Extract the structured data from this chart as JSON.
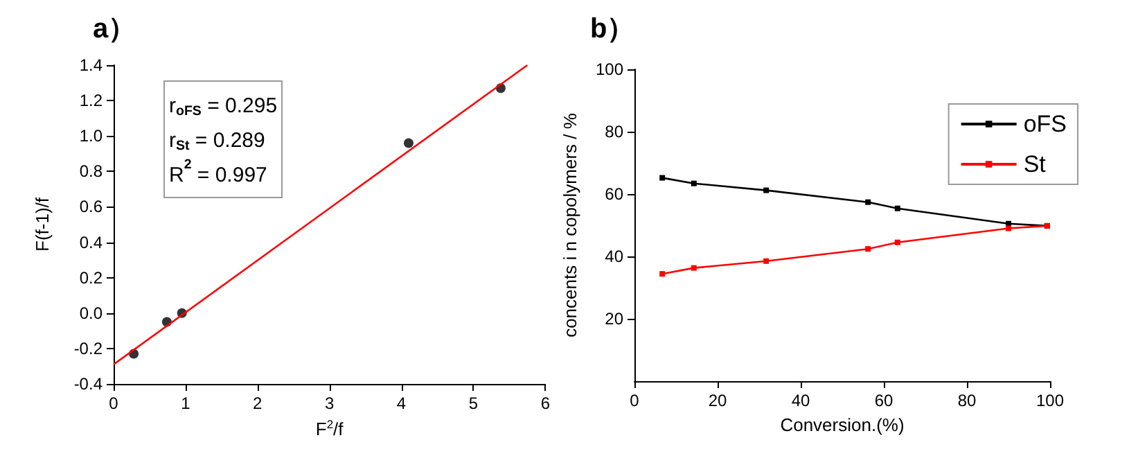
{
  "chart_data": [
    {
      "type": "scatter",
      "title": "a）",
      "xlabel": "F$^{2}$/f",
      "ylabel": "F(f-1)/f",
      "xlim": [
        0,
        6
      ],
      "xticks": [
        0,
        1,
        2,
        3,
        4,
        5,
        6
      ],
      "ylim": [
        -0.4,
        1.4
      ],
      "yticks": [
        {
          "value": -0.4,
          "label": "-0.4"
        },
        {
          "value": -0.2,
          "label": "-0.2"
        },
        {
          "value": 0,
          "label": "0.0"
        },
        {
          "value": 0.2,
          "label": "0.2"
        },
        {
          "value": 0.4,
          "label": "0.4"
        },
        {
          "value": 0.6,
          "label": "0.6"
        },
        {
          "value": 0.8,
          "label": "0.8"
        },
        {
          "value": 1,
          "label": "1.0"
        },
        {
          "value": 1.2,
          "label": "1.2"
        },
        {
          "value": 1.4,
          "label": "1.4"
        }
      ],
      "grid": false,
      "legend": false,
      "annotations": [
        "r$_{oFS}$ = 0.295",
        "r$_{St}$ = 0.289",
        "R$^{2}$ = 0.997"
      ],
      "series": [
        {
          "color": "#000000",
          "marker": "circle",
          "x": [
            0.28,
            0.74,
            0.95,
            4.1,
            5.38
          ],
          "values": [
            -0.23,
            -0.05,
            0.0,
            0.96,
            1.27
          ]
        },
        {
          "type": "line",
          "color": "#ff0000",
          "marker": "none",
          "x": [
            0,
            5.75
          ],
          "values": [
            -0.29,
            1.4
          ]
        }
      ]
    },
    {
      "type": "line",
      "title": "b）",
      "xlabel": "Conversion.(%)",
      "ylabel": "concents i n copolymers / %",
      "xlim": [
        0,
        100
      ],
      "xticks": [
        0,
        20,
        40,
        60,
        80,
        100
      ],
      "ylim": [
        0,
        100
      ],
      "yticks": [
        20,
        40,
        60,
        80,
        100
      ],
      "grid": false,
      "legend": "top right",
      "marker": "square",
      "series": [
        {
          "name": "oFS",
          "color": "#000000",
          "x": [
            6.7,
            14.3,
            31.7,
            56.2,
            63.3,
            90,
            99.3
          ],
          "values": [
            65.2,
            63.4,
            61.2,
            57.4,
            55.4,
            50.5,
            49.8
          ]
        },
        {
          "name": "St",
          "color": "#ff0000",
          "x": [
            6.7,
            14.3,
            31.7,
            56.2,
            63.3,
            90,
            99.3
          ],
          "values": [
            34.4,
            36.3,
            38.5,
            42.4,
            44.5,
            49.0,
            49.8
          ]
        }
      ]
    }
  ]
}
